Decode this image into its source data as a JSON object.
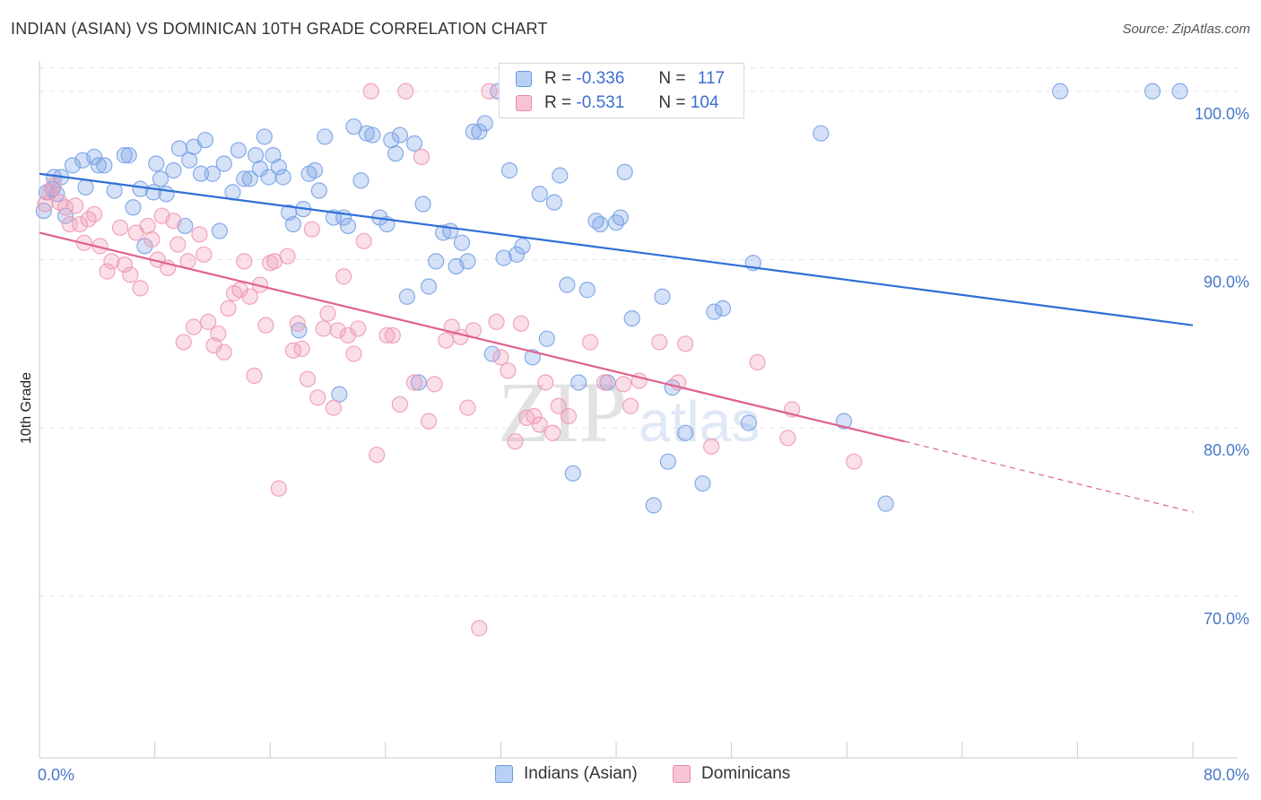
{
  "title": "INDIAN (ASIAN) VS DOMINICAN 10TH GRADE CORRELATION CHART",
  "source": "Source: ZipAtlas.com",
  "watermark": {
    "zip": "ZIP",
    "atlas": "atlas"
  },
  "legend": {
    "r_label": "R =",
    "n_label": "N =",
    "rows": [
      {
        "name": "Indians (Asian)",
        "r": "-0.336",
        "n": "117",
        "fill": "#b8d0f4",
        "stroke": "#6f9ae0"
      },
      {
        "name": "Dominicans",
        "r": "-0.531",
        "n": "104",
        "fill": "#f8c4d4",
        "stroke": "#e88aa8"
      }
    ]
  },
  "chart_data": {
    "type": "scatter",
    "title": "INDIAN (ASIAN) VS DOMINICAN 10TH GRADE CORRELATION CHART",
    "xlabel": "",
    "ylabel": "10th Grade",
    "xlim": [
      0,
      80
    ],
    "ylim": [
      60.4,
      101.8
    ],
    "x_tick_labels": [
      "0.0%",
      "80.0%"
    ],
    "y_ticks": [
      70,
      80,
      90,
      100
    ],
    "y_tick_labels": [
      "70.0%",
      "80.0%",
      "90.0%",
      "100.0%"
    ],
    "grid": true,
    "legend_position": "top-center",
    "series": [
      {
        "name": "Indians (Asian)",
        "color": "#7aa3e6",
        "line_color": "#2f6fd6",
        "trend": {
          "x": [
            0,
            80
          ],
          "y": [
            95.1,
            86.1
          ]
        },
        "points": [
          [
            0.3,
            92.9
          ],
          [
            0.5,
            94.0
          ],
          [
            0.9,
            94.2
          ],
          [
            1.0,
            94.9
          ],
          [
            1.2,
            93.9
          ],
          [
            1.5,
            94.9
          ],
          [
            1.8,
            92.6
          ],
          [
            2.3,
            95.6
          ],
          [
            3.0,
            95.9
          ],
          [
            3.2,
            94.3
          ],
          [
            3.8,
            96.1
          ],
          [
            4.1,
            95.6
          ],
          [
            4.5,
            95.6
          ],
          [
            5.2,
            94.1
          ],
          [
            5.9,
            96.2
          ],
          [
            6.2,
            96.2
          ],
          [
            6.5,
            93.1
          ],
          [
            7.0,
            94.2
          ],
          [
            7.3,
            90.8
          ],
          [
            7.9,
            94.0
          ],
          [
            8.1,
            95.7
          ],
          [
            8.4,
            94.8
          ],
          [
            8.8,
            93.9
          ],
          [
            9.3,
            95.3
          ],
          [
            9.7,
            96.6
          ],
          [
            10.1,
            92.0
          ],
          [
            10.4,
            95.9
          ],
          [
            10.7,
            96.7
          ],
          [
            11.2,
            95.1
          ],
          [
            11.5,
            97.1
          ],
          [
            12.0,
            95.1
          ],
          [
            12.5,
            91.7
          ],
          [
            12.8,
            95.7
          ],
          [
            13.4,
            94.0
          ],
          [
            13.8,
            96.5
          ],
          [
            14.2,
            94.8
          ],
          [
            14.6,
            94.8
          ],
          [
            15.0,
            96.2
          ],
          [
            15.3,
            95.4
          ],
          [
            15.6,
            97.3
          ],
          [
            15.9,
            94.9
          ],
          [
            16.2,
            96.2
          ],
          [
            16.6,
            95.5
          ],
          [
            16.9,
            94.9
          ],
          [
            17.3,
            92.8
          ],
          [
            17.6,
            92.1
          ],
          [
            18.0,
            85.8
          ],
          [
            18.3,
            93.0
          ],
          [
            18.7,
            95.1
          ],
          [
            19.1,
            95.3
          ],
          [
            19.4,
            94.1
          ],
          [
            19.8,
            97.3
          ],
          [
            20.4,
            92.5
          ],
          [
            20.8,
            82.0
          ],
          [
            21.1,
            92.5
          ],
          [
            21.4,
            92.0
          ],
          [
            21.8,
            97.9
          ],
          [
            22.3,
            94.7
          ],
          [
            22.7,
            97.5
          ],
          [
            23.1,
            97.4
          ],
          [
            23.6,
            92.5
          ],
          [
            24.1,
            92.1
          ],
          [
            24.4,
            97.1
          ],
          [
            24.7,
            96.3
          ],
          [
            25.0,
            97.4
          ],
          [
            25.5,
            87.8
          ],
          [
            26.0,
            96.9
          ],
          [
            26.3,
            82.7
          ],
          [
            26.6,
            93.3
          ],
          [
            27.0,
            88.4
          ],
          [
            27.5,
            89.9
          ],
          [
            28.0,
            91.6
          ],
          [
            28.5,
            91.7
          ],
          [
            28.9,
            89.6
          ],
          [
            29.3,
            91.0
          ],
          [
            29.7,
            89.9
          ],
          [
            30.1,
            97.6
          ],
          [
            30.5,
            97.6
          ],
          [
            30.9,
            98.1
          ],
          [
            31.4,
            84.4
          ],
          [
            31.8,
            100.0
          ],
          [
            32.2,
            90.1
          ],
          [
            32.6,
            95.3
          ],
          [
            33.1,
            90.3
          ],
          [
            33.5,
            90.8
          ],
          [
            34.2,
            84.2
          ],
          [
            34.7,
            93.9
          ],
          [
            35.2,
            85.3
          ],
          [
            35.7,
            93.4
          ],
          [
            36.1,
            95.0
          ],
          [
            36.6,
            88.5
          ],
          [
            37.0,
            77.3
          ],
          [
            37.4,
            82.7
          ],
          [
            38.0,
            88.2
          ],
          [
            38.6,
            92.3
          ],
          [
            38.9,
            92.1
          ],
          [
            39.4,
            82.7
          ],
          [
            40.0,
            92.2
          ],
          [
            40.3,
            92.5
          ],
          [
            40.6,
            95.2
          ],
          [
            41.1,
            86.5
          ],
          [
            42.6,
            75.4
          ],
          [
            43.2,
            87.8
          ],
          [
            43.6,
            78.0
          ],
          [
            43.9,
            82.4
          ],
          [
            44.8,
            79.7
          ],
          [
            46.0,
            76.7
          ],
          [
            46.8,
            86.9
          ],
          [
            47.4,
            87.1
          ],
          [
            49.2,
            80.3
          ],
          [
            49.5,
            89.8
          ],
          [
            54.2,
            97.5
          ],
          [
            55.8,
            80.4
          ],
          [
            58.7,
            75.5
          ],
          [
            70.8,
            100.0
          ],
          [
            77.2,
            100.0
          ],
          [
            79.1,
            100.0
          ]
        ]
      },
      {
        "name": "Dominicans",
        "color": "#f09ab6",
        "line_color": "#e0628d",
        "trend": {
          "x": [
            0,
            60
          ],
          "y": [
            91.6,
            79.2
          ]
        },
        "trend_dashed": {
          "x": [
            60,
            80
          ],
          "y": [
            79.2,
            75.0
          ]
        },
        "points": [
          [
            0.4,
            93.3
          ],
          [
            0.7,
            94.0
          ],
          [
            1.0,
            94.4
          ],
          [
            1.4,
            93.4
          ],
          [
            1.8,
            93.1
          ],
          [
            2.1,
            92.1
          ],
          [
            2.5,
            93.2
          ],
          [
            2.8,
            92.1
          ],
          [
            3.1,
            91.0
          ],
          [
            3.4,
            92.4
          ],
          [
            3.8,
            92.7
          ],
          [
            4.2,
            90.8
          ],
          [
            4.7,
            89.3
          ],
          [
            5.0,
            89.9
          ],
          [
            5.6,
            91.9
          ],
          [
            5.9,
            89.7
          ],
          [
            6.3,
            89.1
          ],
          [
            6.7,
            91.6
          ],
          [
            7.0,
            88.3
          ],
          [
            7.5,
            92.0
          ],
          [
            7.8,
            91.2
          ],
          [
            8.2,
            90.0
          ],
          [
            8.5,
            92.6
          ],
          [
            8.9,
            89.5
          ],
          [
            9.3,
            92.3
          ],
          [
            9.6,
            90.9
          ],
          [
            10.0,
            85.1
          ],
          [
            10.3,
            89.9
          ],
          [
            10.7,
            86.0
          ],
          [
            11.1,
            91.5
          ],
          [
            11.4,
            90.3
          ],
          [
            11.7,
            86.3
          ],
          [
            12.1,
            84.9
          ],
          [
            12.4,
            85.6
          ],
          [
            12.8,
            84.5
          ],
          [
            13.1,
            87.1
          ],
          [
            13.5,
            88.0
          ],
          [
            13.9,
            88.2
          ],
          [
            14.2,
            89.9
          ],
          [
            14.6,
            87.8
          ],
          [
            14.9,
            83.1
          ],
          [
            15.3,
            88.5
          ],
          [
            15.7,
            86.1
          ],
          [
            16.0,
            89.8
          ],
          [
            16.3,
            89.9
          ],
          [
            16.6,
            76.4
          ],
          [
            17.2,
            90.2
          ],
          [
            17.6,
            84.6
          ],
          [
            17.9,
            86.2
          ],
          [
            18.2,
            84.7
          ],
          [
            18.6,
            82.9
          ],
          [
            18.9,
            91.8
          ],
          [
            19.3,
            81.8
          ],
          [
            19.7,
            85.9
          ],
          [
            20.0,
            86.8
          ],
          [
            20.4,
            81.2
          ],
          [
            20.7,
            85.8
          ],
          [
            21.1,
            89.0
          ],
          [
            21.4,
            85.5
          ],
          [
            21.8,
            84.4
          ],
          [
            22.1,
            85.9
          ],
          [
            22.5,
            91.1
          ],
          [
            23.0,
            100.0
          ],
          [
            23.4,
            78.4
          ],
          [
            24.1,
            85.5
          ],
          [
            24.5,
            85.5
          ],
          [
            25.0,
            81.4
          ],
          [
            25.4,
            100.0
          ],
          [
            26.0,
            82.7
          ],
          [
            26.5,
            96.1
          ],
          [
            27.0,
            80.4
          ],
          [
            27.4,
            82.6
          ],
          [
            28.2,
            85.2
          ],
          [
            28.6,
            86.0
          ],
          [
            29.2,
            85.4
          ],
          [
            29.7,
            81.2
          ],
          [
            30.1,
            85.8
          ],
          [
            30.5,
            68.1
          ],
          [
            31.2,
            100.0
          ],
          [
            31.7,
            86.3
          ],
          [
            32.0,
            84.2
          ],
          [
            32.5,
            83.4
          ],
          [
            33.0,
            79.2
          ],
          [
            33.4,
            86.2
          ],
          [
            33.8,
            80.6
          ],
          [
            34.3,
            80.7
          ],
          [
            34.7,
            80.2
          ],
          [
            35.1,
            82.7
          ],
          [
            35.6,
            79.7
          ],
          [
            36.0,
            81.3
          ],
          [
            36.7,
            80.7
          ],
          [
            38.2,
            85.1
          ],
          [
            39.2,
            82.7
          ],
          [
            40.5,
            82.6
          ],
          [
            41.0,
            81.3
          ],
          [
            41.6,
            82.8
          ],
          [
            43.0,
            85.1
          ],
          [
            44.3,
            82.7
          ],
          [
            44.8,
            85.0
          ],
          [
            46.6,
            78.9
          ],
          [
            49.8,
            83.9
          ],
          [
            51.9,
            79.4
          ],
          [
            52.2,
            81.1
          ],
          [
            56.5,
            78.0
          ]
        ]
      }
    ]
  }
}
